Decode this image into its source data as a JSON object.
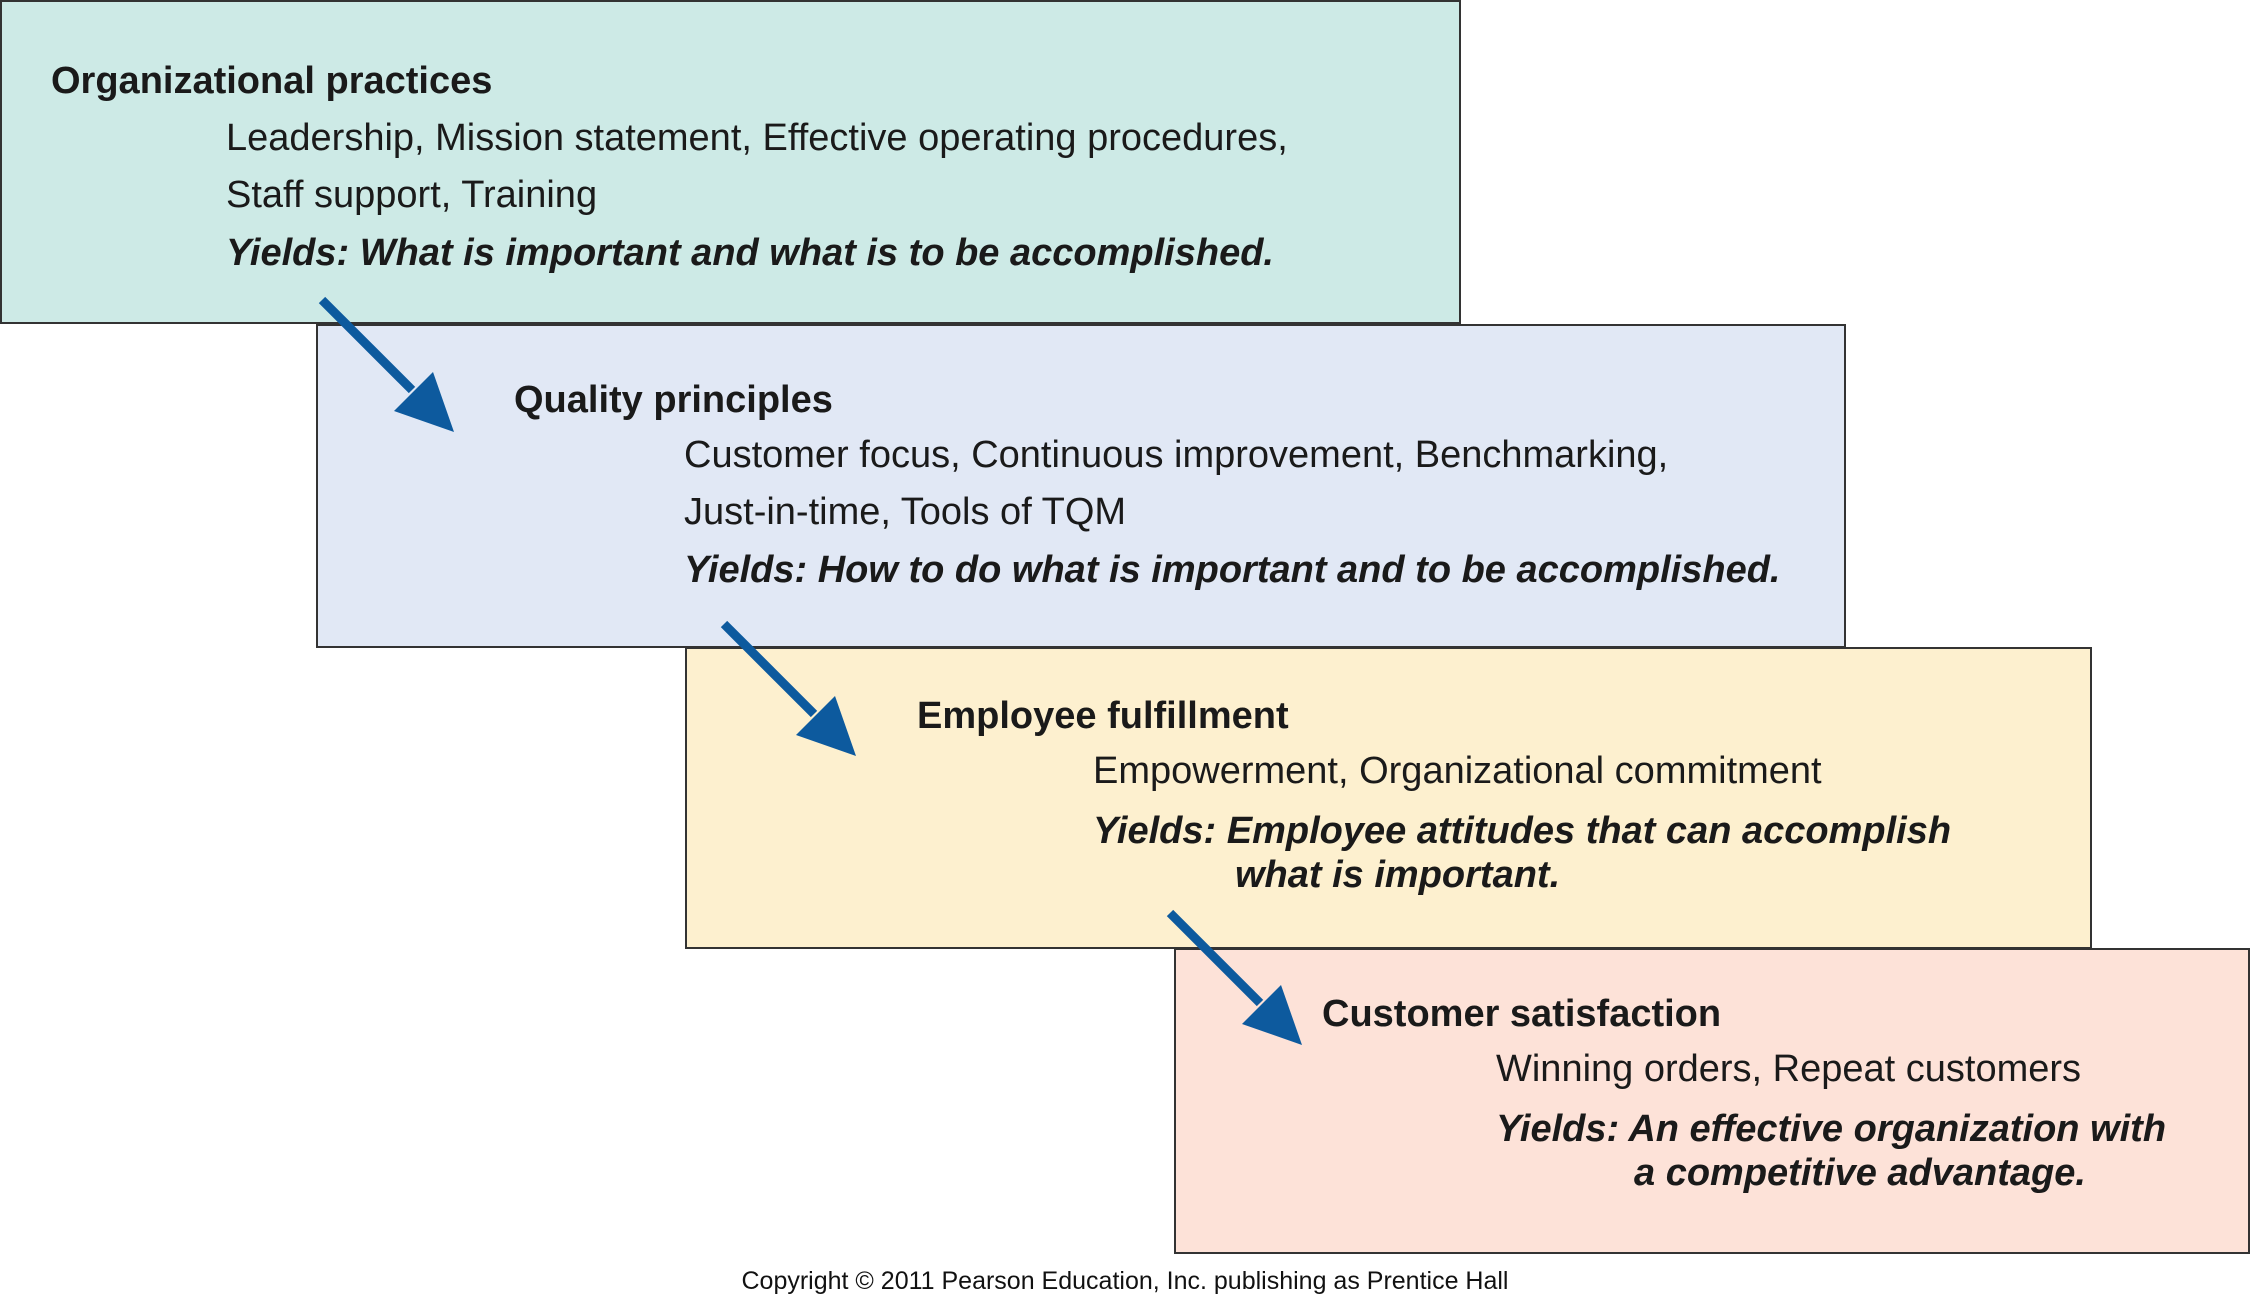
{
  "stages": [
    {
      "title": "Organizational practices",
      "items": [
        "Leadership, Mission statement, Effective operating procedures,",
        "Staff support, Training"
      ],
      "yields": [
        "Yields: What is important and what is to be accomplished."
      ],
      "color": "#cdeae6"
    },
    {
      "title": "Quality principles",
      "items": [
        "Customer focus, Continuous improvement, Benchmarking,",
        "Just-in-time, Tools of TQM"
      ],
      "yields": [
        "Yields: How to do what is important and to be accomplished."
      ],
      "color": "#e1e8f5"
    },
    {
      "title": "Employee fulfillment",
      "items": [
        "Empowerment, Organizational commitment"
      ],
      "yields": [
        "Yields: Employee attitudes that can accomplish",
        "what is important."
      ],
      "color": "#fdf0cf"
    },
    {
      "title": "Customer satisfaction",
      "items": [
        "Winning orders, Repeat customers"
      ],
      "yields": [
        "Yields: An effective organization with",
        "a competitive advantage."
      ],
      "color": "#fde2d8"
    }
  ],
  "arrow_color": "#0d5a9e",
  "copyright": "Copyright © 2011 Pearson Education, Inc. publishing as Prentice Hall"
}
